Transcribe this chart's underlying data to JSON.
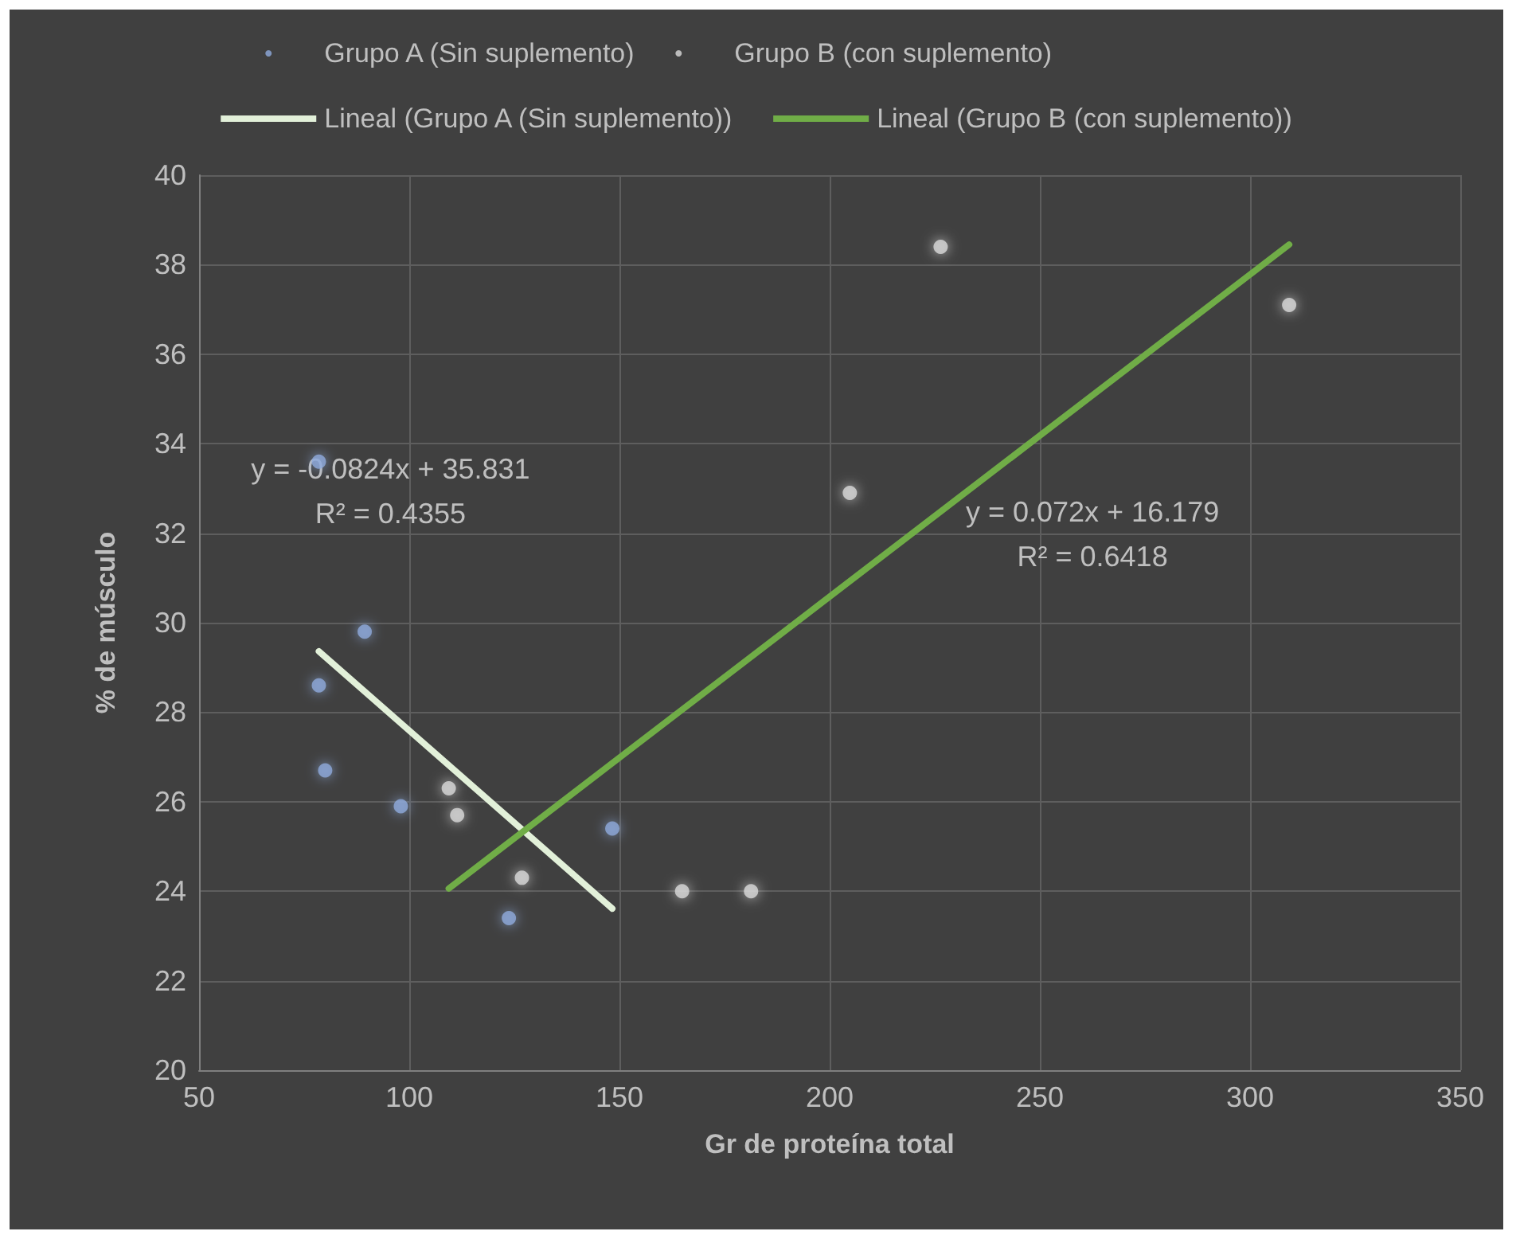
{
  "chart_data": {
    "type": "scatter",
    "xlabel": "Gr de proteína total",
    "ylabel": "% de músculo",
    "xlim": [
      50,
      350
    ],
    "xticks": [
      50,
      100,
      150,
      200,
      250,
      300,
      350
    ],
    "ylim": [
      20,
      40
    ],
    "yticks": [
      20,
      22,
      24,
      26,
      28,
      30,
      32,
      34,
      36,
      38,
      40
    ],
    "grid": true,
    "legend": "top",
    "series": [
      {
        "name": "Grupo A (Sin suplemento)",
        "color": "#8faadc",
        "marker": "circle",
        "x": [
          78.5,
          89.4,
          78.5,
          80.0,
          98.0,
          123.7,
          148.3
        ],
        "values": [
          33.6,
          29.8,
          28.6,
          26.7,
          25.9,
          23.4,
          25.4
        ]
      },
      {
        "name": "Grupo B (con suplemento)",
        "color": "#d9d9d9",
        "marker": "circle",
        "x": [
          109.4,
          111.4,
          126.8,
          164.9,
          181.3,
          204.8,
          226.4,
          309.3
        ],
        "values": [
          26.3,
          25.7,
          24.3,
          24.0,
          24.0,
          32.9,
          38.4,
          37.1
        ]
      },
      {
        "name": "Lineal (Grupo A (Sin suplemento))",
        "type": "line",
        "color": "#e2f0d9",
        "marker": "none",
        "x": [
          78.5,
          148.3
        ],
        "values": [
          29.36,
          23.61
        ]
      },
      {
        "name": "Lineal (Grupo B (con suplemento))",
        "type": "line",
        "color": "#70ad47",
        "marker": "none",
        "x": [
          109.4,
          309.3
        ],
        "values": [
          24.06,
          38.45
        ]
      }
    ],
    "annotations": [
      "y = -0.0824x + 35.831\nR² = 0.4355",
      "y = 0.072x + 16.179\nR² = 0.6418"
    ]
  }
}
